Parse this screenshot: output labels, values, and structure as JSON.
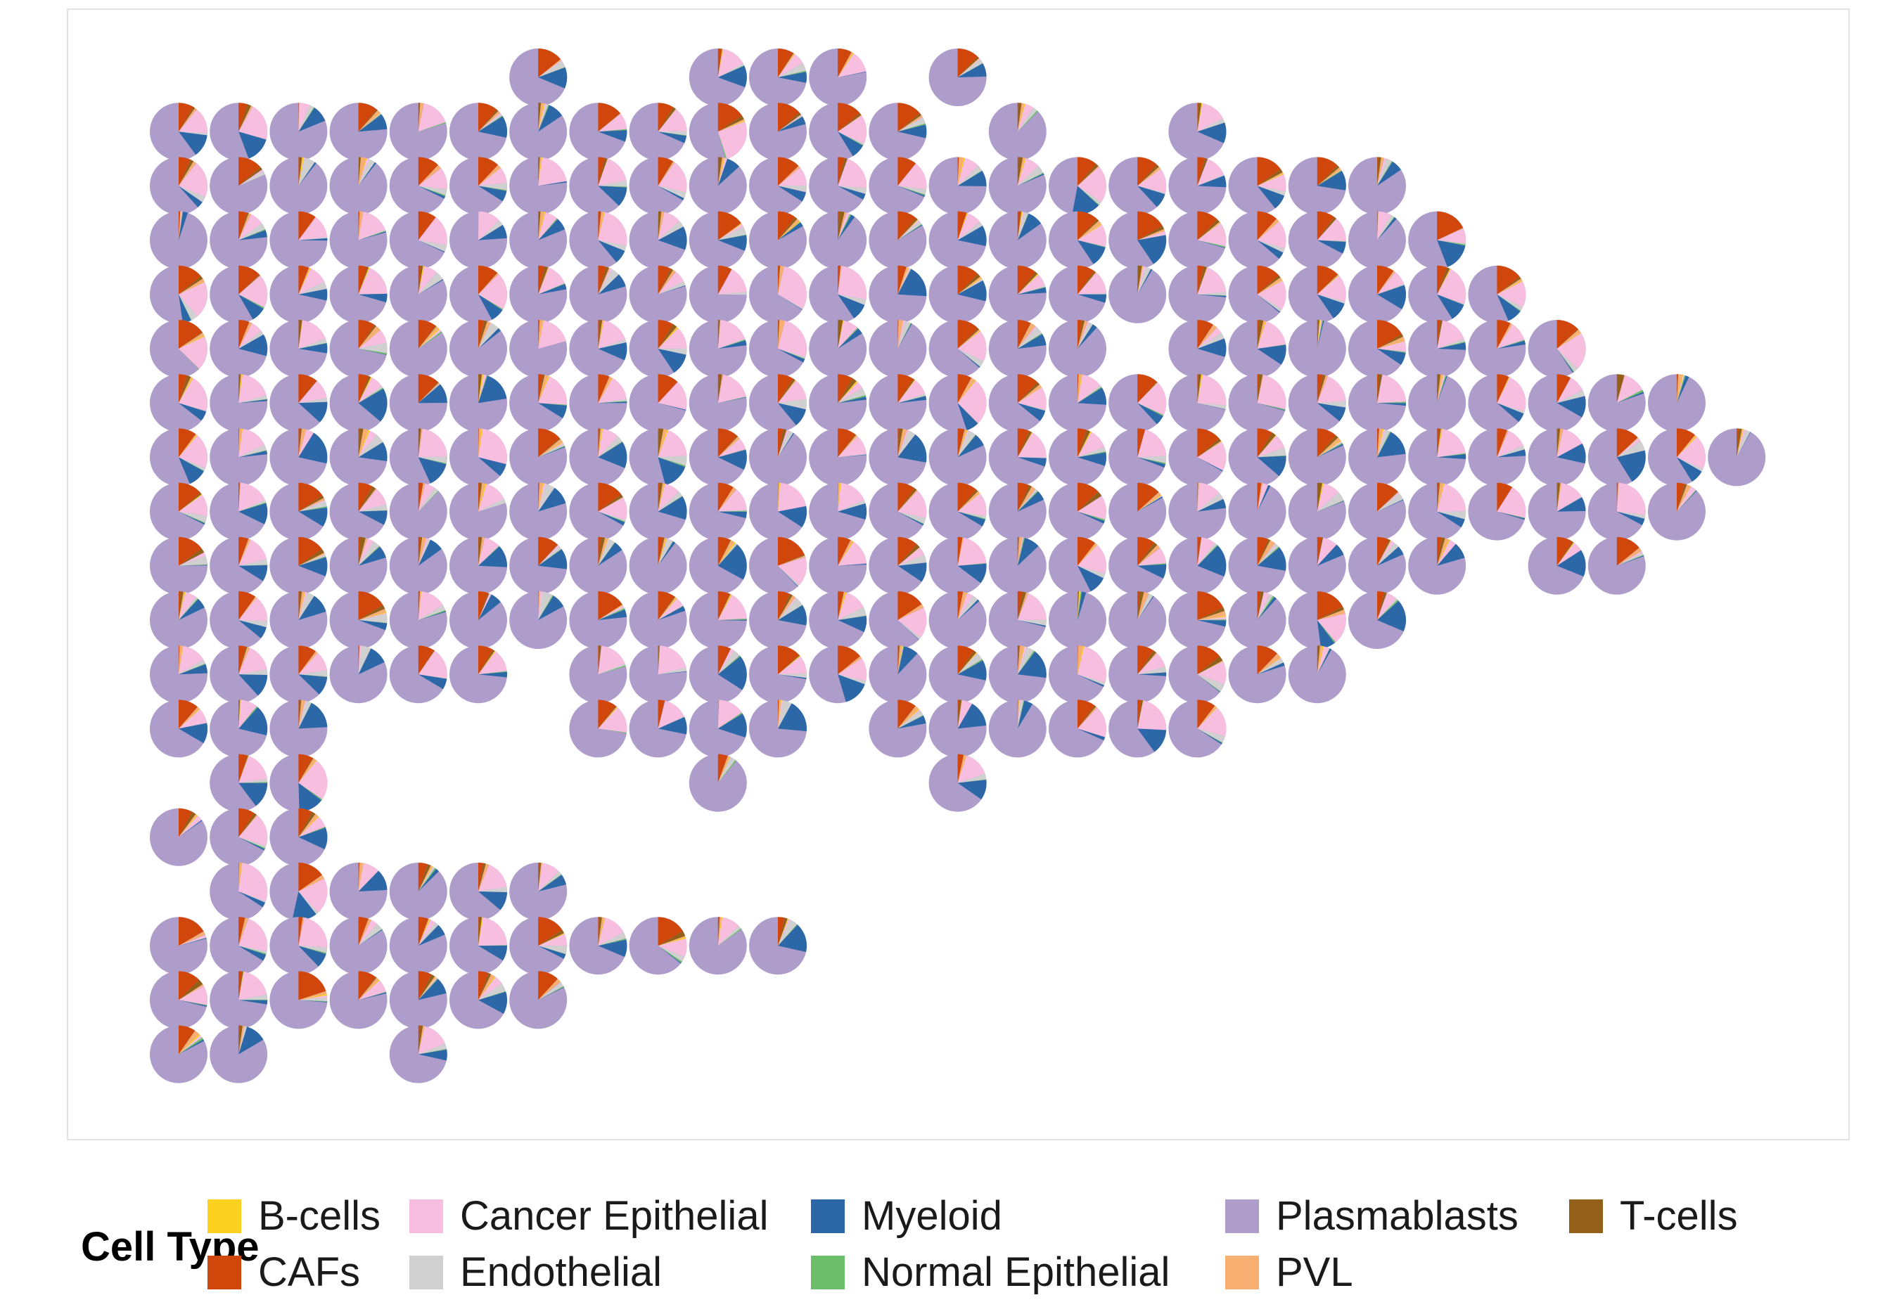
{
  "chart_data": {
    "type": "scatterpie",
    "title": "",
    "xlabel": "",
    "ylabel": "",
    "grid": false,
    "legend_position": "bottom",
    "legend_title": "Cell Type",
    "categories": [
      "B-cells",
      "CAFs",
      "Cancer Epithelial",
      "Endothelial",
      "Myeloid",
      "Normal Epithelial",
      "Plasmablasts",
      "PVL",
      "T-cells"
    ],
    "colors": {
      "B-cells": "#FDD11F",
      "CAFs": "#D1470B",
      "Cancer Epithelial": "#F7BEDF",
      "Endothelial": "#D0D0D0",
      "Myeloid": "#2C68A8",
      "Normal Epithelial": "#6CBE6B",
      "Plasmablasts": "#AE9DCB",
      "PVL": "#F7AE71",
      "T-cells": "#93601A"
    },
    "legend_order": [
      "B-cells",
      "CAFs",
      "Cancer Epithelial",
      "Endothelial",
      "Myeloid",
      "Normal Epithelial",
      "Plasmablasts",
      "PVL",
      "T-cells"
    ],
    "spot_grid": {
      "columns": 27,
      "note_rows": "row index 0 = top; each entry lists occupied column indices",
      "rows": [
        [
          6,
          9,
          10,
          11,
          13
        ],
        [
          0,
          1,
          2,
          3,
          4,
          5,
          6,
          7,
          8,
          9,
          10,
          11,
          12,
          14,
          17
        ],
        [
          0,
          1,
          2,
          3,
          4,
          5,
          6,
          7,
          8,
          9,
          10,
          11,
          12,
          13,
          14,
          15,
          16,
          17,
          18,
          19,
          20
        ],
        [
          0,
          1,
          2,
          3,
          4,
          5,
          6,
          7,
          8,
          9,
          10,
          11,
          12,
          13,
          14,
          15,
          16,
          17,
          18,
          19,
          20,
          21
        ],
        [
          0,
          1,
          2,
          3,
          4,
          5,
          6,
          7,
          8,
          9,
          10,
          11,
          12,
          13,
          14,
          15,
          16,
          17,
          18,
          19,
          20,
          21,
          22
        ],
        [
          0,
          1,
          2,
          3,
          4,
          5,
          6,
          7,
          8,
          9,
          10,
          11,
          12,
          13,
          14,
          15,
          17,
          18,
          19,
          20,
          21,
          22,
          23
        ],
        [
          0,
          1,
          2,
          3,
          4,
          5,
          6,
          7,
          8,
          9,
          10,
          11,
          12,
          13,
          14,
          15,
          16,
          17,
          18,
          19,
          20,
          21,
          22,
          23,
          24,
          25
        ],
        [
          0,
          1,
          2,
          3,
          4,
          5,
          6,
          7,
          8,
          9,
          10,
          11,
          12,
          13,
          14,
          15,
          16,
          17,
          18,
          19,
          20,
          21,
          22,
          23,
          24,
          25,
          26
        ],
        [
          0,
          1,
          2,
          3,
          4,
          5,
          6,
          7,
          8,
          9,
          10,
          11,
          12,
          13,
          14,
          15,
          16,
          17,
          18,
          19,
          20,
          21,
          22,
          23,
          24,
          25
        ],
        [
          0,
          1,
          2,
          3,
          4,
          5,
          6,
          7,
          8,
          9,
          10,
          11,
          12,
          13,
          14,
          15,
          16,
          17,
          18,
          19,
          20,
          21,
          23,
          24
        ],
        [
          0,
          1,
          2,
          3,
          4,
          5,
          6,
          7,
          8,
          9,
          10,
          11,
          12,
          13,
          14,
          15,
          16,
          17,
          18,
          19,
          20
        ],
        [
          0,
          1,
          2,
          3,
          4,
          5,
          7,
          8,
          9,
          10,
          11,
          12,
          13,
          14,
          15,
          16,
          17,
          18,
          19
        ],
        [
          0,
          1,
          2,
          7,
          8,
          9,
          10,
          12,
          13,
          14,
          15,
          16,
          17
        ],
        [
          1,
          2,
          9,
          13
        ],
        [
          0,
          1,
          2
        ],
        [
          1,
          2,
          3,
          4,
          5,
          6
        ],
        [
          0,
          1,
          2,
          3,
          4,
          5,
          6,
          7,
          8,
          9,
          10
        ],
        [
          0,
          1,
          2,
          3,
          4,
          5,
          6
        ],
        [
          0,
          1,
          4
        ]
      ]
    },
    "typical_composition": {
      "Plasmablasts": 0.72,
      "Cancer Epithelial": 0.1,
      "Myeloid": 0.07,
      "CAFs": 0.07,
      "Endothelial": 0.02,
      "T-cells": 0.01,
      "PVL": 0.01
    }
  }
}
